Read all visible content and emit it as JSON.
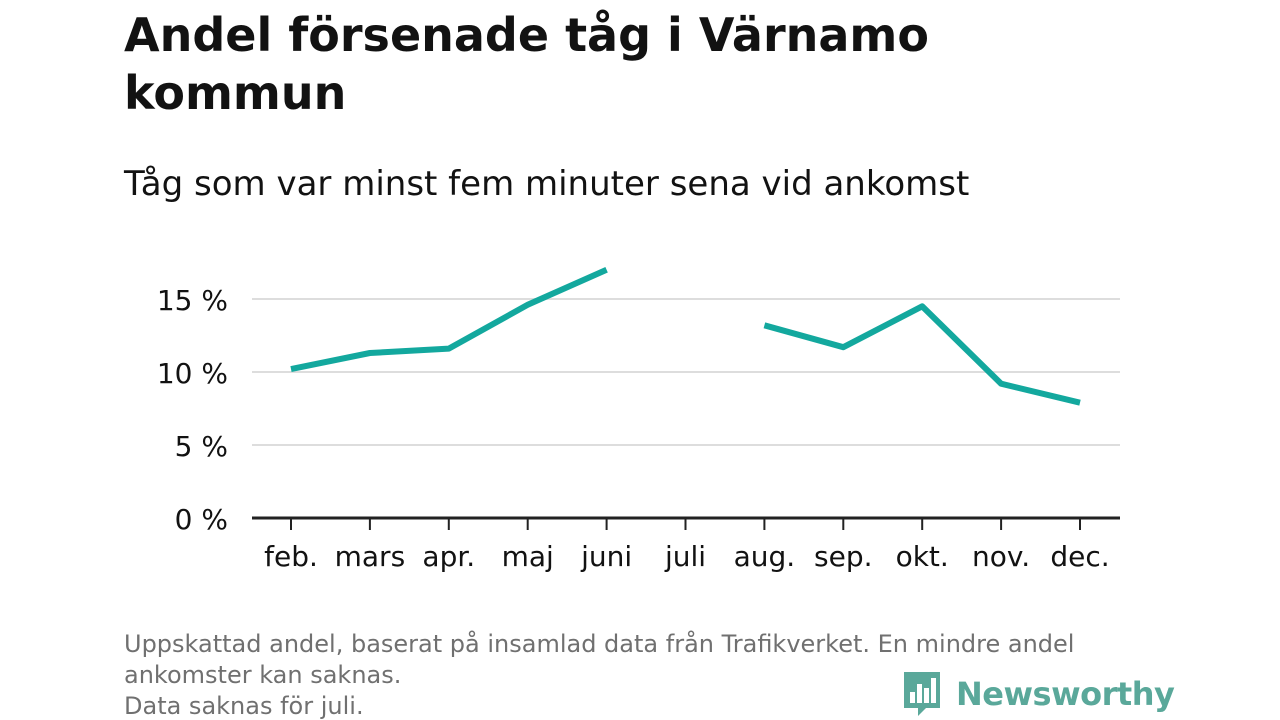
{
  "title": "Andel försenade tåg i Värnamo kommun",
  "subtitle": "Tåg som var minst fem minuter sena vid ankomst",
  "footnote": {
    "line1": "Uppskattad andel, baserat på insamlad data från Trafikverket. En mindre andel",
    "line2": "ankomster kan saknas.",
    "line3": "Data saknas för juli."
  },
  "logo": {
    "name": "Newsworthy",
    "icon": "newsworthy-bar-chart-icon",
    "color": "#5aa89a"
  },
  "colors": {
    "line": "#13a89e",
    "grid": "#dddddd",
    "axis": "#222222",
    "text": "#121212"
  },
  "chart_data": {
    "type": "line",
    "categories": [
      "feb.",
      "mars",
      "apr.",
      "maj",
      "juni",
      "juli",
      "aug.",
      "sep.",
      "okt.",
      "nov.",
      "dec."
    ],
    "series": [
      {
        "values": [
          10.2,
          11.3,
          11.6,
          14.6,
          17.0,
          null,
          13.2,
          11.7,
          14.5,
          9.2,
          7.9
        ]
      }
    ],
    "yticks": [
      0,
      5,
      10,
      15
    ],
    "ytick_labels": [
      "0 %",
      "5 %",
      "10 %",
      "15 %"
    ],
    "ylim": [
      0,
      17.5
    ],
    "grid": true,
    "xlabel": "",
    "ylabel": ""
  }
}
